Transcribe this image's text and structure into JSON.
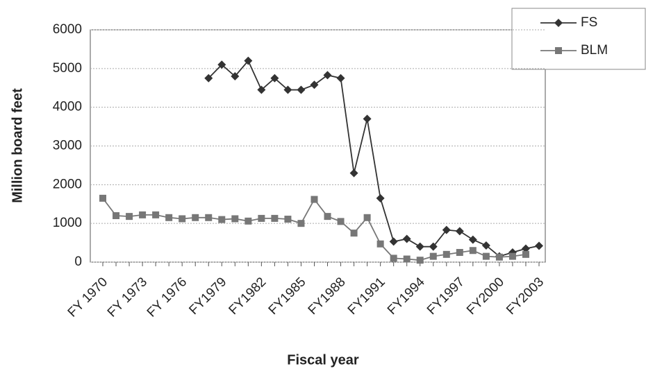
{
  "chart_data": {
    "type": "line",
    "x_label": "Fiscal year",
    "y_label": "Million board feet",
    "categories": [
      "FY 1970",
      null,
      null,
      "FY 1973",
      null,
      null,
      "FY 1976",
      null,
      null,
      "FY1979",
      null,
      null,
      "FY1982",
      null,
      null,
      "FY1985",
      null,
      null,
      "FY1988",
      null,
      null,
      "FY1991",
      null,
      null,
      "FY1994",
      null,
      null,
      "FY1997",
      null,
      null,
      "FY2000",
      null,
      null,
      "FY2003"
    ],
    "series": [
      {
        "name": "FS",
        "color": "#333333",
        "marker": "diamond",
        "values": [
          null,
          null,
          null,
          null,
          null,
          null,
          null,
          null,
          4750,
          5100,
          4800,
          5200,
          4450,
          4750,
          4450,
          4450,
          4580,
          4830,
          4750,
          2300,
          3700,
          1650,
          530,
          600,
          400,
          400,
          830,
          800,
          580,
          430,
          150,
          250,
          350,
          420
        ]
      },
      {
        "name": "BLM",
        "color": "#777777",
        "marker": "square",
        "values": [
          1650,
          1200,
          1180,
          1220,
          1220,
          1150,
          1120,
          1150,
          1150,
          1100,
          1120,
          1060,
          1130,
          1130,
          1110,
          1000,
          1620,
          1180,
          1050,
          750,
          1150,
          470,
          100,
          80,
          50,
          150,
          200,
          250,
          300,
          150,
          130,
          150,
          200,
          null
        ]
      }
    ],
    "ylim": [
      0,
      6000
    ],
    "yticks": [
      0,
      1000,
      2000,
      3000,
      4000,
      5000,
      6000
    ],
    "grid": true,
    "legend": "top-right"
  }
}
